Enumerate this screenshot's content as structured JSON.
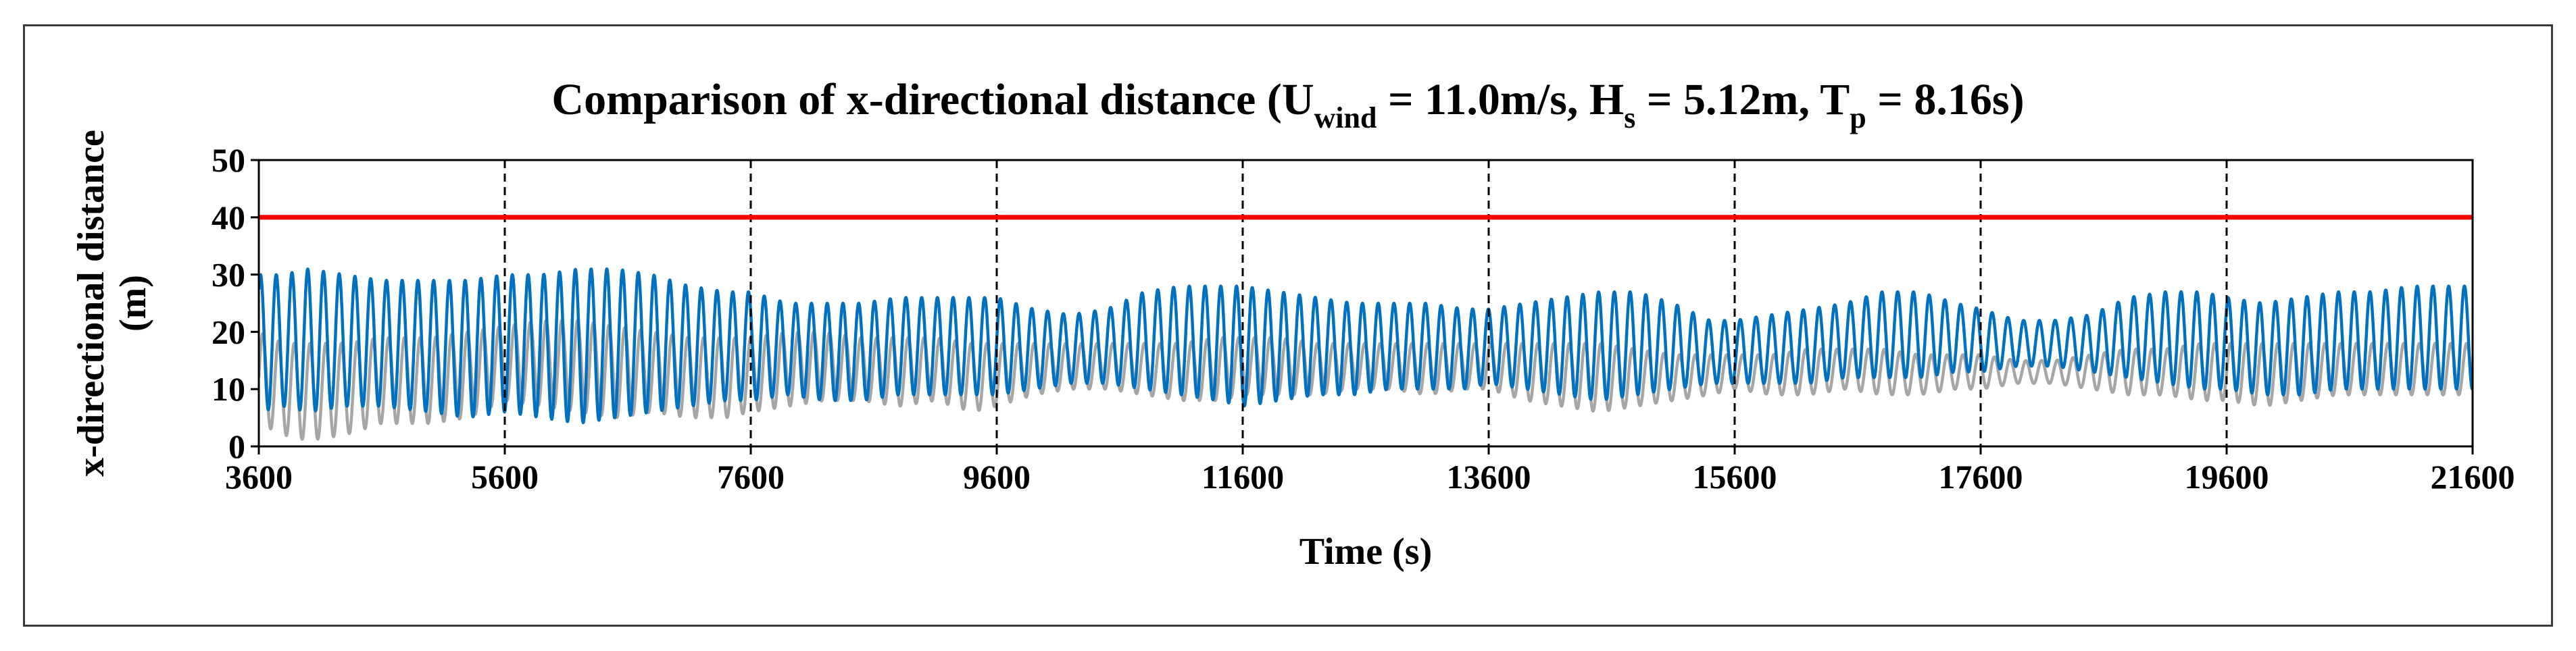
{
  "chart_data": {
    "type": "line",
    "title": {
      "prefix": "Comparison of x-directional distance (U",
      "wind_sub": "wind",
      "mid1": " = 11.0m/s, H",
      "s_sub": "s",
      "mid2": " = 5.12m, T",
      "p_sub": "p",
      "suffix": " = 8.16s)"
    },
    "xlabel": "Time (s)",
    "ylabel_line1": "x-directional distance",
    "ylabel_line2": "(m)",
    "xlim": [
      3600,
      21600
    ],
    "ylim": [
      0,
      50
    ],
    "x_ticks": [
      3600,
      5600,
      7600,
      9600,
      11600,
      13600,
      15600,
      17600,
      19600,
      21600
    ],
    "y_ticks": [
      0,
      10,
      20,
      30,
      40,
      50
    ],
    "vertical_dashed_lines_at": [
      5600,
      7600,
      9600,
      11600,
      13600,
      15600,
      17600,
      19600
    ],
    "limit_line": {
      "value": 40,
      "color": "#ff0000"
    },
    "wave_period_s": 128,
    "series": [
      {
        "name": "gray series",
        "color": "#a6a6a6",
        "envelope": {
          "t": [
            3600,
            3800,
            4000,
            4300,
            4600,
            5000,
            5300,
            5600,
            5900,
            6200,
            6500,
            6800,
            7100,
            7400,
            7600,
            7900,
            8200,
            8500,
            8800,
            9100,
            9400,
            9600,
            9900,
            10200,
            10500,
            10800,
            11100,
            11400,
            11600,
            11900,
            12200,
            12500,
            12800,
            13100,
            13400,
            13600,
            13900,
            14200,
            14500,
            14800,
            15100,
            15400,
            15600,
            15900,
            16200,
            16500,
            16800,
            17100,
            17400,
            17600,
            17900,
            18200,
            18500,
            18800,
            19100,
            19400,
            19600,
            19900,
            20200,
            20500,
            20800,
            21100,
            21400,
            21600
          ],
          "low": [
            4,
            2,
            1,
            2,
            4,
            4,
            5,
            8,
            7,
            6,
            5,
            6,
            5,
            5,
            6,
            7,
            8,
            8,
            7,
            8,
            6,
            7,
            9,
            10,
            10,
            9,
            8,
            8,
            9,
            9,
            9,
            10,
            10,
            9,
            10,
            10,
            8,
            7,
            6,
            7,
            8,
            9,
            10,
            9,
            9,
            10,
            9,
            9,
            10,
            10,
            11,
            11,
            10,
            9,
            9,
            8,
            8,
            7,
            8,
            9,
            9,
            9,
            9,
            9
          ],
          "high": [
            20,
            18,
            18,
            18,
            19,
            19,
            20,
            21,
            22,
            22,
            21,
            20,
            19,
            19,
            19,
            20,
            20,
            19,
            19,
            19,
            18,
            18,
            18,
            18,
            18,
            18,
            18,
            19,
            19,
            19,
            18,
            18,
            18,
            18,
            18,
            18,
            18,
            18,
            18,
            17,
            16,
            16,
            16,
            16,
            17,
            17,
            17,
            16,
            16,
            16,
            15,
            15,
            16,
            17,
            17,
            18,
            18,
            18,
            18,
            18,
            18,
            18,
            18,
            18
          ]
        }
      },
      {
        "name": "blue series",
        "color": "#0070c0",
        "envelope": {
          "t": [
            3600,
            3800,
            4000,
            4300,
            4600,
            5000,
            5300,
            5600,
            5900,
            6200,
            6500,
            6800,
            7100,
            7400,
            7600,
            7900,
            8200,
            8500,
            8800,
            9100,
            9400,
            9600,
            9900,
            10200,
            10500,
            10800,
            11100,
            11400,
            11600,
            11900,
            12200,
            12500,
            12800,
            13100,
            13400,
            13600,
            13900,
            14200,
            14500,
            14800,
            15100,
            15400,
            15600,
            15900,
            16200,
            16500,
            16800,
            17100,
            17400,
            17600,
            17900,
            18200,
            18500,
            18800,
            19100,
            19400,
            19600,
            19900,
            20200,
            20500,
            20800,
            21100,
            21400,
            21600
          ],
          "low": [
            6,
            7,
            6,
            7,
            7,
            6,
            5,
            6,
            5,
            4,
            5,
            6,
            7,
            8,
            8,
            9,
            8,
            8,
            9,
            9,
            9,
            9,
            10,
            11,
            11,
            10,
            9,
            8,
            7,
            8,
            9,
            9,
            10,
            10,
            10,
            11,
            10,
            9,
            8,
            9,
            10,
            11,
            11,
            11,
            11,
            12,
            12,
            12,
            13,
            13,
            14,
            14,
            13,
            12,
            11,
            10,
            10,
            9,
            9,
            10,
            10,
            10,
            10,
            10
          ],
          "high": [
            30,
            30,
            31,
            30,
            29,
            29,
            29,
            30,
            30,
            31,
            31,
            30,
            28,
            27,
            27,
            25,
            25,
            25,
            26,
            26,
            26,
            26,
            24,
            23,
            24,
            27,
            28,
            28,
            28,
            27,
            26,
            25,
            25,
            25,
            24,
            24,
            25,
            26,
            27,
            27,
            25,
            22,
            22,
            23,
            24,
            25,
            27,
            27,
            25,
            24,
            22,
            22,
            23,
            26,
            27,
            27,
            26,
            25,
            26,
            27,
            27,
            28,
            28,
            28
          ]
        }
      }
    ]
  }
}
